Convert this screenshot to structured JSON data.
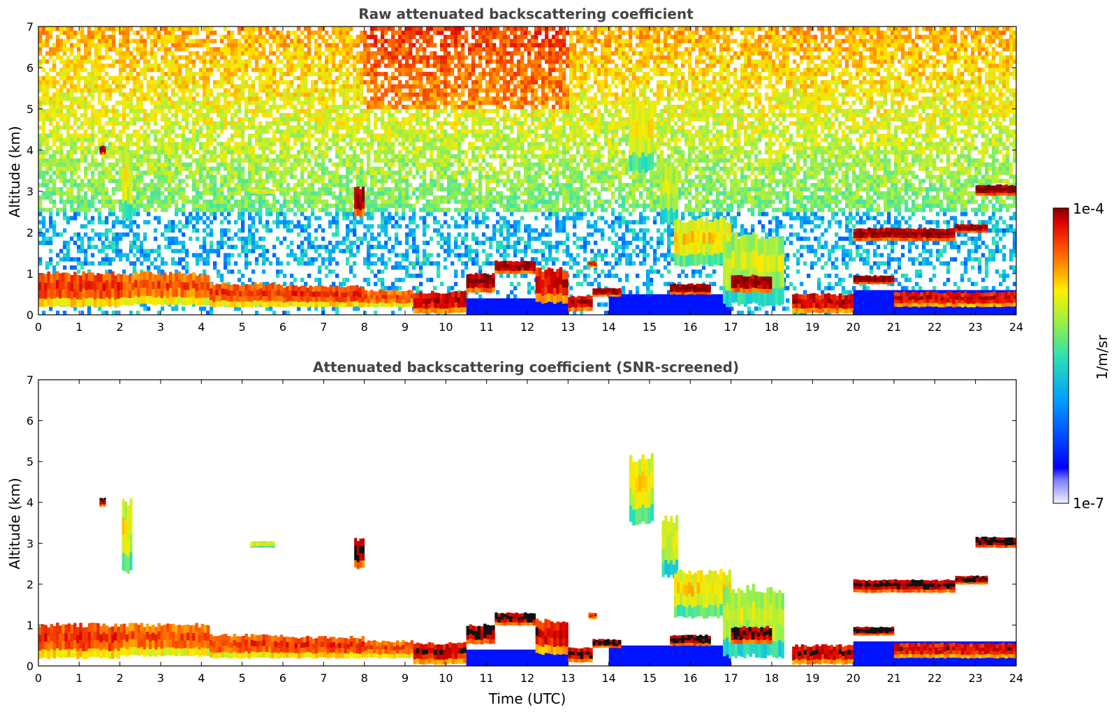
{
  "chart_data": [
    {
      "type": "heatmap",
      "title": "Raw attenuated backscattering coefficient",
      "xlabel": "",
      "ylabel": "Altitude (km)",
      "xlim": [
        0,
        24
      ],
      "ylim": [
        0,
        7
      ],
      "x_ticks": [
        "0",
        "1",
        "2",
        "3",
        "4",
        "5",
        "6",
        "7",
        "8",
        "9",
        "10",
        "11",
        "12",
        "13",
        "14",
        "15",
        "16",
        "17",
        "18",
        "19",
        "20",
        "21",
        "22",
        "23",
        "24"
      ],
      "y_ticks": [
        "0",
        "1",
        "2",
        "3",
        "4",
        "5",
        "6",
        "7"
      ],
      "grid": false,
      "screened": false,
      "colormap": "jet"
    },
    {
      "type": "heatmap",
      "title": "Attenuated backscattering coefficient (SNR-screened)",
      "xlabel": "Time (UTC)",
      "ylabel": "Altitude (km)",
      "xlim": [
        0,
        24
      ],
      "ylim": [
        0,
        7
      ],
      "x_ticks": [
        "0",
        "1",
        "2",
        "3",
        "4",
        "5",
        "6",
        "7",
        "8",
        "9",
        "10",
        "11",
        "12",
        "13",
        "14",
        "15",
        "16",
        "17",
        "18",
        "19",
        "20",
        "21",
        "22",
        "23",
        "24"
      ],
      "y_ticks": [
        "0",
        "1",
        "2",
        "3",
        "4",
        "5",
        "6",
        "7"
      ],
      "grid": false,
      "screened": true,
      "colormap": "jet"
    }
  ],
  "colorbar": {
    "label": "1/m/sr",
    "max_label": "1e-4",
    "min_label": "1e-7",
    "scale": "log",
    "placement": "right"
  },
  "layers": [
    {
      "t0": 0.0,
      "t1": 2.0,
      "base": 0.2,
      "top": 1.0,
      "level": 0.82
    },
    {
      "t0": 2.0,
      "t1": 4.2,
      "base": 0.25,
      "top": 1.0,
      "level": 0.78
    },
    {
      "t0": 4.2,
      "t1": 6.0,
      "base": 0.2,
      "top": 0.75,
      "level": 0.8
    },
    {
      "t0": 6.0,
      "t1": 8.0,
      "base": 0.2,
      "top": 0.7,
      "level": 0.82
    },
    {
      "t0": 8.0,
      "t1": 9.2,
      "base": 0.2,
      "top": 0.6,
      "level": 0.78
    },
    {
      "t0": 9.2,
      "t1": 10.5,
      "base": 0.05,
      "top": 0.55,
      "level": 0.9
    },
    {
      "t0": 10.5,
      "t1": 11.2,
      "base": 0.55,
      "top": 1.0,
      "level": 0.95
    },
    {
      "t0": 11.2,
      "t1": 12.2,
      "base": 1.0,
      "top": 1.3,
      "level": 0.95
    },
    {
      "t0": 12.2,
      "t1": 13.0,
      "base": 0.3,
      "top": 1.1,
      "level": 0.88
    },
    {
      "t0": 13.0,
      "t1": 13.6,
      "base": 0.1,
      "top": 0.45,
      "level": 0.92
    },
    {
      "t0": 13.6,
      "t1": 14.3,
      "base": 0.45,
      "top": 0.65,
      "level": 0.95
    },
    {
      "t0": 14.5,
      "t1": 15.1,
      "base": 3.5,
      "top": 5.1,
      "level": 0.6
    },
    {
      "t0": 15.3,
      "t1": 15.7,
      "base": 2.2,
      "top": 3.6,
      "level": 0.55
    },
    {
      "t0": 15.6,
      "t1": 17.0,
      "base": 1.2,
      "top": 2.3,
      "level": 0.62
    },
    {
      "t0": 15.5,
      "t1": 16.5,
      "base": 0.5,
      "top": 0.75,
      "level": 0.97
    },
    {
      "t0": 16.8,
      "t1": 18.3,
      "base": 0.25,
      "top": 1.9,
      "level": 0.55
    },
    {
      "t0": 17.0,
      "t1": 18.0,
      "base": 0.55,
      "top": 0.95,
      "level": 0.95
    },
    {
      "t0": 18.5,
      "t1": 20.0,
      "base": 0.05,
      "top": 0.5,
      "level": 0.9
    },
    {
      "t0": 20.0,
      "t1": 21.0,
      "base": 0.75,
      "top": 0.95,
      "level": 0.97
    },
    {
      "t0": 20.0,
      "t1": 22.5,
      "base": 1.8,
      "top": 2.1,
      "level": 0.95
    },
    {
      "t0": 22.5,
      "t1": 23.3,
      "base": 2.0,
      "top": 2.2,
      "level": 0.95
    },
    {
      "t0": 21.0,
      "t1": 24.0,
      "base": 0.2,
      "top": 0.55,
      "level": 0.88
    },
    {
      "t0": 23.0,
      "t1": 24.0,
      "base": 2.9,
      "top": 3.15,
      "level": 0.97
    },
    {
      "t0": 7.75,
      "t1": 8.0,
      "base": 2.4,
      "top": 3.1,
      "level": 0.95
    },
    {
      "t0": 2.05,
      "t1": 2.3,
      "base": 2.3,
      "top": 4.0,
      "level": 0.6
    },
    {
      "t0": 1.5,
      "t1": 1.65,
      "base": 3.9,
      "top": 4.1,
      "level": 0.95
    },
    {
      "t0": 5.2,
      "t1": 5.8,
      "base": 2.9,
      "top": 3.05,
      "level": 0.6
    },
    {
      "t0": 13.5,
      "t1": 13.7,
      "base": 1.15,
      "top": 1.3,
      "level": 0.85
    }
  ],
  "low_zone": [
    {
      "t0": 10.5,
      "t1": 13.0,
      "top": 0.4
    },
    {
      "t0": 14.0,
      "t1": 17.0,
      "top": 0.5
    },
    {
      "t0": 20.0,
      "t1": 24.0,
      "top": 0.6
    }
  ]
}
